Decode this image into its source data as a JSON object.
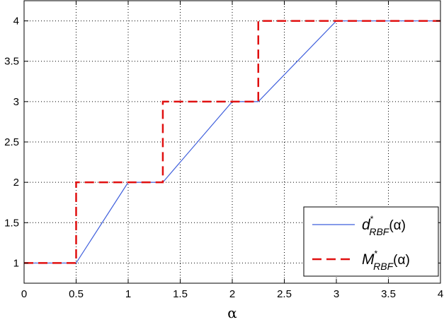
{
  "chart_data": {
    "type": "line",
    "xlabel": "α",
    "ylabel": "",
    "xlim": [
      0,
      4
    ],
    "ylim": [
      0.75,
      4.25
    ],
    "xticks": [
      "0",
      "0.5",
      "1",
      "1.5",
      "2",
      "2.5",
      "3",
      "3.5",
      "4"
    ],
    "yticks": [
      "1",
      "1.5",
      "2",
      "2.5",
      "3",
      "3.5",
      "4"
    ],
    "grid": true,
    "legend_position": "bottom-right",
    "series": [
      {
        "name_parts": {
          "base": "d",
          "sup": "*",
          "sub": "RBF",
          "arg": "(α)"
        },
        "color": "#3f5fdc",
        "style": "solid",
        "points": [
          [
            0,
            1
          ],
          [
            0.5,
            1
          ],
          [
            1,
            2
          ],
          [
            1.333,
            2
          ],
          [
            2,
            3
          ],
          [
            2.25,
            3
          ],
          [
            3,
            4
          ],
          [
            4,
            4
          ]
        ]
      },
      {
        "name_parts": {
          "base": "M",
          "sup": "*",
          "sub": "RBF",
          "arg": "(α)"
        },
        "color": "#e01010",
        "style": "dashed",
        "points": [
          [
            0,
            1
          ],
          [
            0.5,
            1
          ],
          [
            0.5,
            2
          ],
          [
            1.333,
            2
          ],
          [
            1.333,
            3
          ],
          [
            2.25,
            3
          ],
          [
            2.25,
            4
          ],
          [
            4,
            4
          ]
        ]
      }
    ]
  }
}
